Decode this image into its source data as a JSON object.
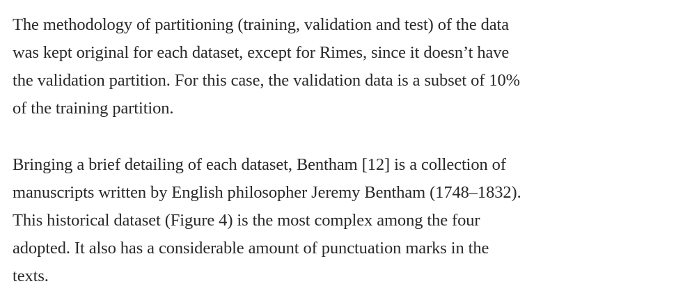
{
  "paragraphs": [
    {
      "lines": [
        "The methodology of partitioning (training, validation and test) of the data",
        "was kept original for each dataset, except for Rimes, since it doesn’t have",
        "the validation partition. For this case, the validation data is a subset of 10%",
        "of the training partition."
      ]
    },
    {
      "lines": [
        "Bringing a brief detailing of each dataset, Bentham [12] is a collection of",
        "manuscripts written by English philosopher Jeremy Bentham (1748–1832).",
        "This historical dataset (Figure 4) is the most complex among the four",
        "adopted. It also has a considerable amount of punctuation marks in the",
        "texts."
      ]
    }
  ]
}
